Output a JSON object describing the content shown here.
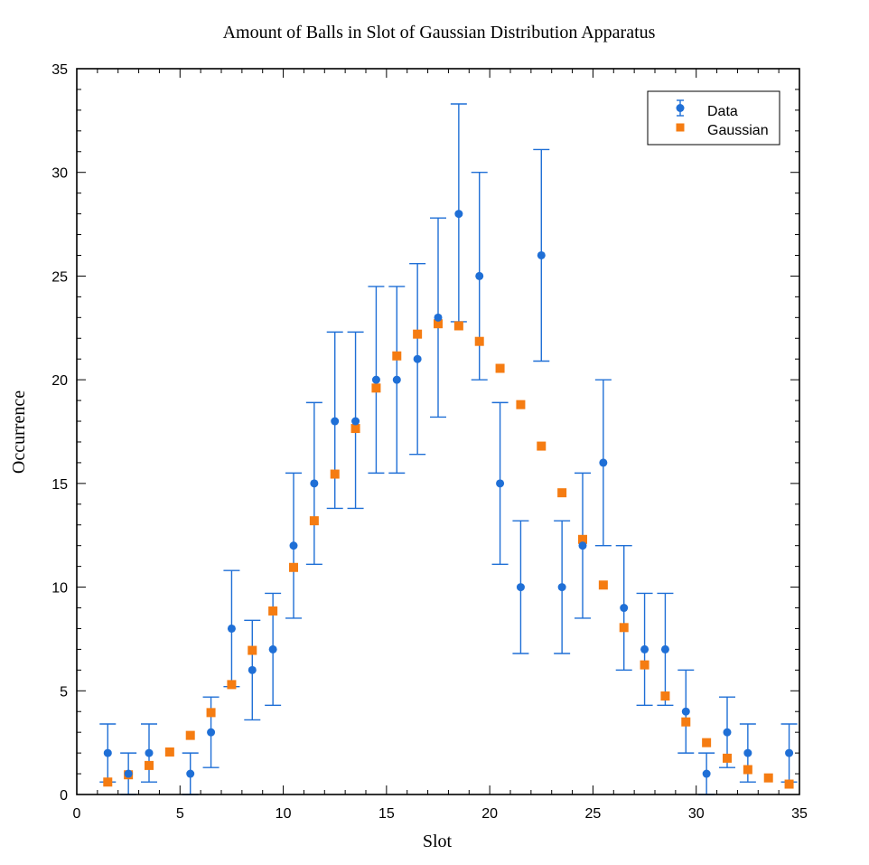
{
  "chart_data": {
    "type": "scatter",
    "title": "Amount of Balls in Slot of Gaussian Distribution Apparatus",
    "xlabel": "Slot",
    "ylabel": "Occurrence",
    "xlim": [
      0,
      35
    ],
    "ylim": [
      0,
      35
    ],
    "xticks": [
      0,
      5,
      10,
      15,
      20,
      25,
      30,
      35
    ],
    "yticks": [
      0,
      5,
      10,
      15,
      20,
      25,
      30,
      35
    ],
    "grid": false,
    "legend_position": "top-right",
    "series": [
      {
        "name": "Data",
        "marker": "circle",
        "color": "#1f6fd6",
        "x": [
          1.5,
          2.5,
          3.5,
          5.5,
          6.5,
          7.5,
          8.5,
          9.5,
          10.5,
          11.5,
          12.5,
          13.5,
          14.5,
          15.5,
          16.5,
          17.5,
          18.5,
          19.5,
          20.5,
          21.5,
          22.5,
          23.5,
          24.5,
          25.5,
          26.5,
          27.5,
          28.5,
          29.5,
          30.5,
          31.5,
          32.5,
          34.5
        ],
        "y": [
          2,
          1,
          2,
          1,
          3,
          8,
          6,
          7,
          12,
          15,
          18,
          18,
          20,
          20,
          21,
          23,
          28,
          25,
          15,
          10,
          26,
          10,
          12,
          16,
          9,
          7,
          7,
          4,
          1,
          3,
          2,
          2
        ],
        "yerr_low": [
          0.6,
          0.0,
          0.6,
          0.0,
          1.3,
          5.2,
          3.6,
          4.3,
          8.5,
          11.1,
          13.8,
          13.8,
          15.5,
          15.5,
          16.4,
          18.2,
          22.8,
          20.0,
          11.1,
          6.8,
          20.9,
          6.8,
          8.5,
          12.0,
          6.0,
          4.3,
          4.3,
          2.0,
          0.0,
          1.3,
          0.6,
          0.6
        ],
        "yerr_high": [
          3.4,
          2.0,
          3.4,
          2.0,
          4.7,
          10.8,
          8.4,
          9.7,
          15.5,
          18.9,
          22.3,
          22.3,
          24.5,
          24.5,
          25.6,
          27.8,
          33.3,
          30.0,
          18.9,
          13.2,
          31.1,
          13.2,
          15.5,
          20.0,
          12.0,
          9.7,
          9.7,
          6.0,
          2.0,
          4.7,
          3.4,
          3.4
        ]
      },
      {
        "name": "Gaussian",
        "marker": "square",
        "color": "#f57c12",
        "x": [
          1.5,
          2.5,
          3.5,
          4.5,
          5.5,
          6.5,
          7.5,
          8.5,
          9.5,
          10.5,
          11.5,
          12.5,
          13.5,
          14.5,
          15.5,
          16.5,
          17.5,
          18.5,
          19.5,
          20.5,
          21.5,
          22.5,
          23.5,
          24.5,
          25.5,
          26.5,
          27.5,
          28.5,
          29.5,
          30.5,
          31.5,
          32.5,
          33.5,
          34.5
        ],
        "y": [
          0.6,
          0.95,
          1.4,
          2.05,
          2.85,
          3.95,
          5.3,
          6.95,
          8.85,
          10.95,
          13.2,
          15.45,
          17.65,
          19.6,
          21.15,
          22.2,
          22.7,
          22.6,
          21.85,
          20.55,
          18.8,
          16.8,
          14.55,
          12.3,
          10.1,
          8.05,
          6.25,
          4.75,
          3.5,
          2.5,
          1.75,
          1.2,
          0.8,
          0.5
        ]
      }
    ]
  }
}
